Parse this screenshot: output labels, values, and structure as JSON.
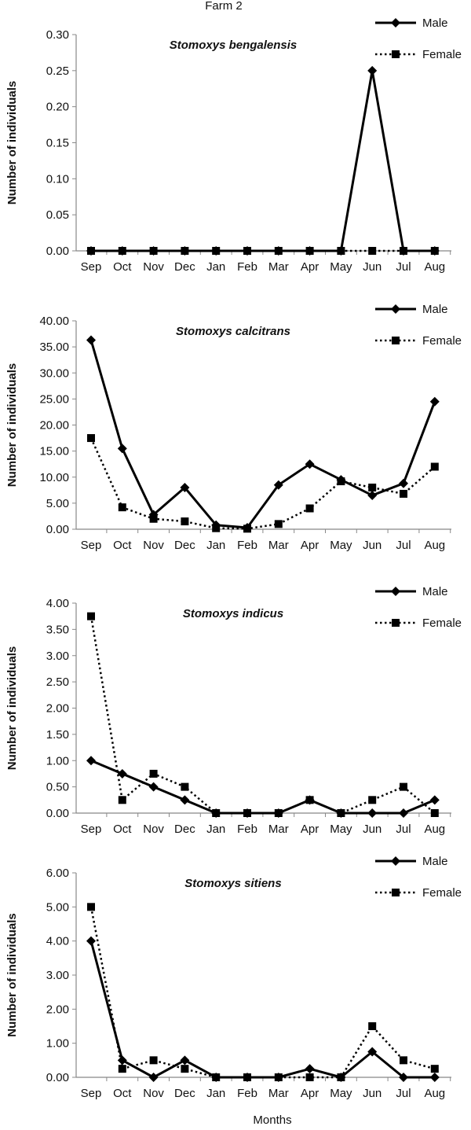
{
  "figure": {
    "title": "Farm 2",
    "xlabel": "Months"
  },
  "chart_data": [
    {
      "type": "line",
      "title": "Stomoxys bengalensis",
      "ylabel": "Number of individuals",
      "ylim": [
        0,
        0.3
      ],
      "yticks": [
        "0.00",
        "0.05",
        "0.10",
        "0.15",
        "0.20",
        "0.25",
        "0.30"
      ],
      "categories": [
        "Sep",
        "Oct",
        "Nov",
        "Dec",
        "Jan",
        "Feb",
        "Mar",
        "Apr",
        "May",
        "Jun",
        "Jul",
        "Aug"
      ],
      "legend": "top-right",
      "series": [
        {
          "name": "Male",
          "marker": "diamond",
          "line": "solid",
          "values": [
            0,
            0,
            0,
            0,
            0,
            0,
            0,
            0,
            0,
            0.25,
            0,
            0
          ]
        },
        {
          "name": "Female",
          "marker": "square",
          "line": "dotted",
          "values": [
            0,
            0,
            0,
            0,
            0,
            0,
            0,
            0,
            0,
            0,
            0,
            0
          ]
        }
      ]
    },
    {
      "type": "line",
      "title": "Stomoxys calcitrans",
      "ylabel": "Number of individuals",
      "ylim": [
        0,
        40
      ],
      "yticks": [
        "0.00",
        "5.00",
        "10.00",
        "15.00",
        "20.00",
        "25.00",
        "30.00",
        "35.00",
        "40.00"
      ],
      "categories": [
        "Sep",
        "Oct",
        "Nov",
        "Dec",
        "Jan",
        "Feb",
        "Mar",
        "Apr",
        "May",
        "Jun",
        "Jul",
        "Aug"
      ],
      "legend": "top-right",
      "series": [
        {
          "name": "Male",
          "marker": "diamond",
          "line": "solid",
          "values": [
            36.3,
            15.5,
            2.8,
            8.0,
            0.8,
            0.3,
            8.5,
            12.5,
            9.5,
            6.5,
            8.8,
            24.5
          ]
        },
        {
          "name": "Female",
          "marker": "square",
          "line": "dotted",
          "values": [
            17.5,
            4.2,
            2.0,
            1.5,
            0.2,
            0.1,
            1.0,
            4.0,
            9.2,
            8.0,
            6.8,
            12.0
          ]
        }
      ]
    },
    {
      "type": "line",
      "title": "Stomoxys indicus",
      "ylabel": "Number of individuals",
      "ylim": [
        0,
        4
      ],
      "yticks": [
        "0.00",
        "0.50",
        "1.00",
        "1.50",
        "2.00",
        "2.50",
        "3.00",
        "3.50",
        "4.00"
      ],
      "categories": [
        "Sep",
        "Oct",
        "Nov",
        "Dec",
        "Jan",
        "Feb",
        "Mar",
        "Apr",
        "May",
        "Jun",
        "Jul",
        "Aug"
      ],
      "legend": "top-right",
      "series": [
        {
          "name": "Male",
          "marker": "diamond",
          "line": "solid",
          "values": [
            1.0,
            0.75,
            0.5,
            0.25,
            0,
            0,
            0,
            0.25,
            0,
            0,
            0,
            0.25
          ]
        },
        {
          "name": "Female",
          "marker": "square",
          "line": "dotted",
          "values": [
            3.75,
            0.25,
            0.75,
            0.5,
            0,
            0,
            0,
            0.25,
            0,
            0.25,
            0.5,
            0
          ]
        }
      ]
    },
    {
      "type": "line",
      "title": "Stomoxys sitiens",
      "ylabel": "Number of individuals",
      "ylim": [
        0,
        6
      ],
      "yticks": [
        "0.00",
        "1.00",
        "2.00",
        "3.00",
        "4.00",
        "5.00",
        "6.00"
      ],
      "categories": [
        "Sep",
        "Oct",
        "Nov",
        "Dec",
        "Jan",
        "Feb",
        "Mar",
        "Apr",
        "May",
        "Jun",
        "Jul",
        "Aug"
      ],
      "legend": "top-right",
      "series": [
        {
          "name": "Male",
          "marker": "diamond",
          "line": "solid",
          "values": [
            4.0,
            0.5,
            0,
            0.5,
            0,
            0,
            0,
            0.25,
            0,
            0.75,
            0,
            0
          ]
        },
        {
          "name": "Female",
          "marker": "square",
          "line": "dotted",
          "values": [
            5.0,
            0.25,
            0.5,
            0.25,
            0,
            0,
            0,
            0,
            0,
            1.5,
            0.5,
            0.25
          ]
        }
      ]
    }
  ]
}
